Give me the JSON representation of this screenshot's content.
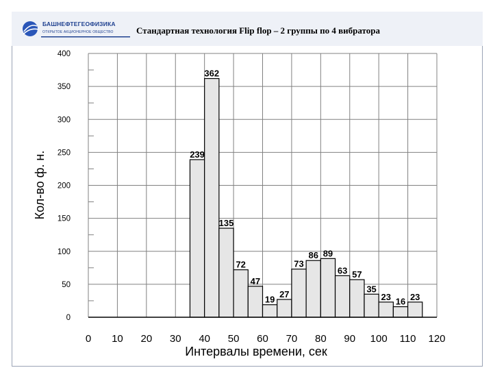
{
  "header": {
    "logo_name": "БАШНЕФТЕГЕОФИЗИКА",
    "logo_subtitle": "ОТКРЫТОЕ АКЦИОНЕРНОЕ ОБЩЕСТВО",
    "title": "Стандартная технология Flip flop – 2 группы по 4 вибратора"
  },
  "chart_data": {
    "type": "bar",
    "title": "Стандартная технология Flip flop – 2 группы по 4 вибратора",
    "xlabel": "Интервалы времени, сек",
    "ylabel": "Кол-во ф. н.",
    "xlim": [
      0,
      120
    ],
    "ylim": [
      0,
      400
    ],
    "xticks": [
      0,
      10,
      20,
      30,
      40,
      50,
      60,
      70,
      80,
      90,
      100,
      110,
      120
    ],
    "yticks": [
      0,
      50,
      100,
      150,
      200,
      250,
      300,
      350,
      400
    ],
    "grid": true,
    "bin_width": 5,
    "bins": [
      {
        "start": 35,
        "value": 239
      },
      {
        "start": 40,
        "value": 362
      },
      {
        "start": 45,
        "value": 135
      },
      {
        "start": 50,
        "value": 72
      },
      {
        "start": 55,
        "value": 47
      },
      {
        "start": 60,
        "value": 19
      },
      {
        "start": 65,
        "value": 27
      },
      {
        "start": 70,
        "value": 73
      },
      {
        "start": 75,
        "value": 86
      },
      {
        "start": 80,
        "value": 89
      },
      {
        "start": 85,
        "value": 63
      },
      {
        "start": 90,
        "value": 57
      },
      {
        "start": 95,
        "value": 35
      },
      {
        "start": 100,
        "value": 23
      },
      {
        "start": 105,
        "value": 16
      },
      {
        "start": 110,
        "value": 23
      }
    ],
    "colors": {
      "bar_fill": "#e6e6e6",
      "bar_stroke": "#000000",
      "grid": "#808080"
    }
  }
}
